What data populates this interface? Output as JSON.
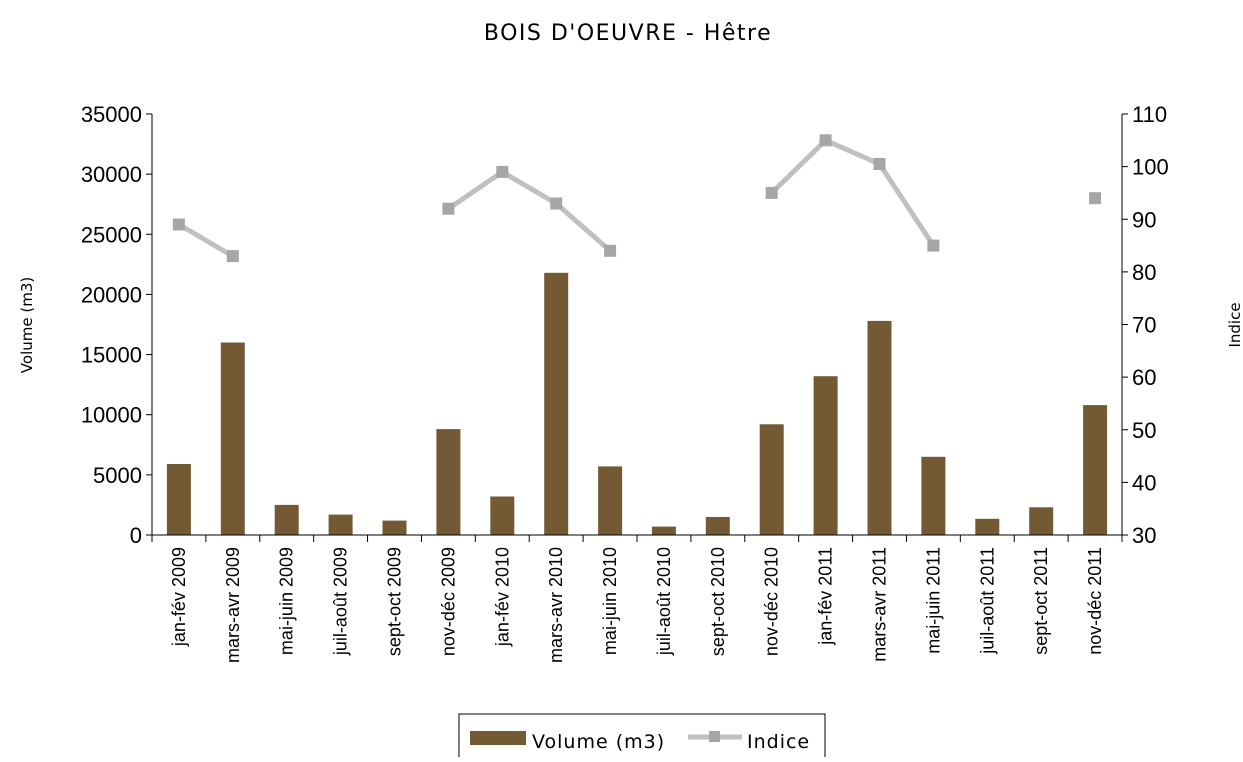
{
  "chart_data": {
    "type": "bar",
    "title": "BOIS D'OEUVRE - Hêtre",
    "categories": [
      "jan-fév 2009",
      "mars-avr 2009",
      "mai-juin 2009",
      "juil-août 2009",
      "sept-oct 2009",
      "nov-déc 2009",
      "jan-fév 2010",
      "mars-avr 2010",
      "mai-juin 2010",
      "juil-août 2010",
      "sept-oct 2010",
      "nov-déc 2010",
      "jan-fév 2011",
      "mars-avr 2011",
      "mai-juin 2011",
      "juil-août 2011",
      "sept-oct 2011",
      "nov-déc 2011"
    ],
    "series": [
      {
        "name": "Volume (m3)",
        "type": "bar",
        "axis": "left",
        "color": "#735a34",
        "values": [
          5900,
          16000,
          2500,
          1700,
          1200,
          8800,
          3200,
          21800,
          5700,
          700,
          1500,
          9200,
          13200,
          17800,
          6500,
          1350,
          2300,
          10800
        ]
      },
      {
        "name": "Indice",
        "type": "line",
        "axis": "right",
        "color": "#c0c0c0",
        "marker_color": "#a6a6a6",
        "values": [
          89,
          83,
          null,
          null,
          null,
          92,
          99,
          93,
          84,
          null,
          null,
          95,
          105,
          100.5,
          85,
          null,
          null,
          94
        ]
      }
    ],
    "ylabel": "Volume (m3)",
    "y2label": "Indice",
    "ylim": [
      0,
      35000
    ],
    "yticks": [
      "0",
      "5000",
      "10000",
      "15000",
      "20000",
      "25000",
      "30000",
      "35000"
    ],
    "y2lim": [
      30,
      110
    ],
    "y2ticks": [
      "30",
      "40",
      "50",
      "60",
      "70",
      "80",
      "90",
      "100",
      "110"
    ],
    "grid": false,
    "legend_position": "bottom"
  }
}
